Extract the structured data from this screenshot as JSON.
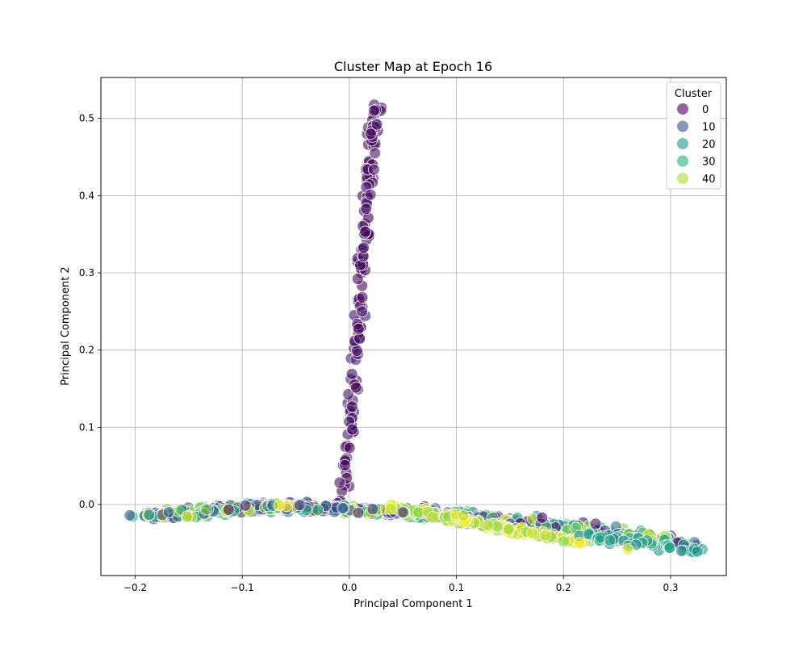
{
  "chart_data": {
    "type": "scatter",
    "title": "Cluster Map at Epoch 16",
    "xlabel": "Principal Component 1",
    "ylabel": "Principal Component 2",
    "xlim": [
      -0.232,
      0.352
    ],
    "ylim": [
      -0.092,
      0.553
    ],
    "xticks": [
      -0.2,
      -0.1,
      0.0,
      0.1,
      0.2,
      0.3
    ],
    "xtick_labels": [
      "−0.2",
      "−0.1",
      "0.0",
      "0.1",
      "0.2",
      "0.3"
    ],
    "yticks": [
      0.0,
      0.1,
      0.2,
      0.3,
      0.4,
      0.5
    ],
    "ytick_labels": [
      "0.0",
      "0.1",
      "0.2",
      "0.3",
      "0.4",
      "0.5"
    ],
    "grid": true,
    "legend": {
      "title": "Cluster",
      "placement": "top-right",
      "entries": [
        {
          "label": "0",
          "color": "#440154"
        },
        {
          "label": "10",
          "color": "#3b528b"
        },
        {
          "label": "20",
          "color": "#21918c"
        },
        {
          "label": "30",
          "color": "#27ad81"
        },
        {
          "label": "40",
          "color": "#aadc32"
        }
      ]
    },
    "colormap": "viridis",
    "color_range": [
      0,
      49
    ],
    "marker_alpha": 0.6,
    "segments": [
      {
        "from": [
          -0.005,
          0.0
        ],
        "to": [
          0.025,
          0.525
        ],
        "count": 140,
        "spread": [
          0.005,
          0.004
        ],
        "clusters": [
          0,
          4
        ]
      },
      {
        "from": [
          -0.19,
          -0.015
        ],
        "to": [
          -0.07,
          -0.002
        ],
        "count": 200,
        "spread": [
          0.012,
          0.006
        ],
        "clusters": [
          0,
          49
        ]
      },
      {
        "from": [
          -0.07,
          -0.002
        ],
        "to": [
          0.05,
          -0.01
        ],
        "count": 200,
        "spread": [
          0.014,
          0.005
        ],
        "clusters": [
          0,
          49
        ]
      },
      {
        "from": [
          0.05,
          -0.008
        ],
        "to": [
          0.32,
          -0.05
        ],
        "count": 280,
        "spread": [
          0.01,
          0.008
        ],
        "clusters": [
          0,
          49
        ]
      },
      {
        "from": [
          0.04,
          -0.004
        ],
        "to": [
          0.22,
          -0.05
        ],
        "count": 120,
        "spread": [
          0.01,
          0.005
        ],
        "clusters": [
          40,
          49
        ]
      },
      {
        "from": [
          0.22,
          -0.04
        ],
        "to": [
          0.325,
          -0.06
        ],
        "count": 40,
        "spread": [
          0.006,
          0.006
        ],
        "clusters": [
          22,
          32
        ]
      }
    ],
    "points": [
      {
        "x": -0.205,
        "y": -0.014,
        "c": 12
      },
      {
        "x": 0.05,
        "y": -0.01,
        "c": 5
      },
      {
        "x": 0.325,
        "y": -0.061,
        "c": 24
      },
      {
        "x": 0.31,
        "y": -0.06,
        "c": 22
      },
      {
        "x": 0.26,
        "y": -0.058,
        "c": 48
      },
      {
        "x": 0.215,
        "y": -0.05,
        "c": 49
      },
      {
        "x": 0.023,
        "y": 0.51,
        "c": 2
      },
      {
        "x": 0.02,
        "y": 0.48,
        "c": 1
      },
      {
        "x": 0.18,
        "y": -0.017,
        "c": 1
      },
      {
        "x": 0.23,
        "y": -0.025,
        "c": 3
      }
    ]
  }
}
